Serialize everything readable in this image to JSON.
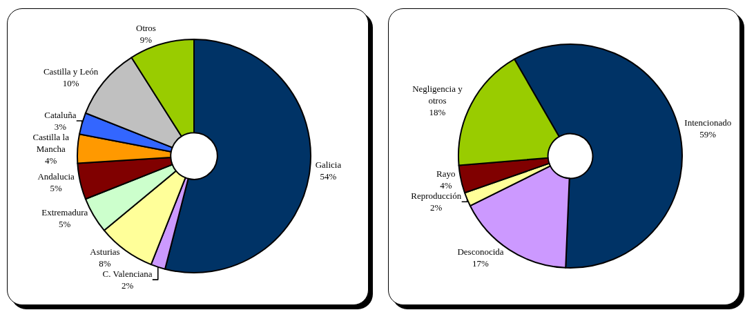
{
  "chart_data": [
    {
      "type": "donut",
      "categories": [
        "Galicia",
        "C. Valenciana",
        "Asturias",
        "Extremadura",
        "Andalucia",
        "Castilla la Mancha",
        "Cataluña",
        "Castilla y León",
        "Otros"
      ],
      "values": [
        54,
        2,
        8,
        5,
        5,
        4,
        3,
        10,
        9
      ],
      "value_labels": [
        "54%",
        "2%",
        "8%",
        "5%",
        "5%",
        "4%",
        "3%",
        "10%",
        "9%"
      ],
      "colors": [
        "#003366",
        "#cc99ff",
        "#ffff99",
        "#ccffcc",
        "#800000",
        "#ff9900",
        "#3366ff",
        "#c0c0c0",
        "#99cc00"
      ],
      "legend": false
    },
    {
      "type": "donut",
      "categories": [
        "Intencionado",
        "Desconocida",
        "Reproducción",
        "Rayo",
        "Negligencia y otros"
      ],
      "values": [
        59,
        17,
        2,
        4,
        18
      ],
      "value_labels": [
        "59%",
        "17%",
        "2%",
        "4%",
        "18%"
      ],
      "colors": [
        "#003366",
        "#cc99ff",
        "#ffff99",
        "#800000",
        "#99cc00"
      ],
      "legend": false
    }
  ]
}
